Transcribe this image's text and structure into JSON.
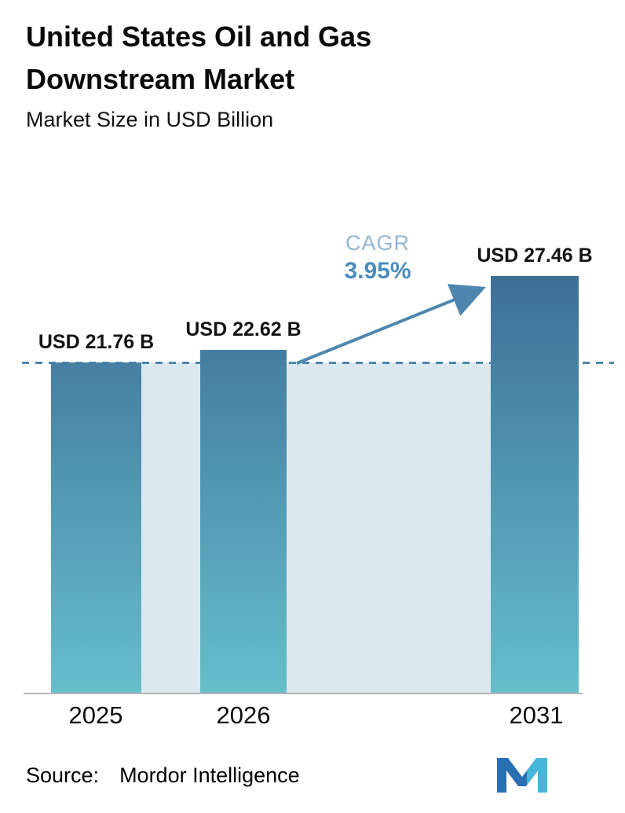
{
  "header": {
    "title": "United States Oil and Gas Downstream Market",
    "subtitle": "Market Size in USD Billion"
  },
  "chart_data": {
    "type": "bar",
    "categories": [
      "2025",
      "2026",
      "2031"
    ],
    "values": [
      21.76,
      22.62,
      27.46
    ],
    "value_labels": [
      "USD 21.76 B",
      "USD 22.62 B",
      "USD 27.46 B"
    ],
    "title": "United States Oil and Gas Downstream Market",
    "subtitle": "Market Size in USD Billion",
    "xlabel": "",
    "ylabel": "Market Size in USD Billion",
    "ylim": [
      0,
      28
    ],
    "grid": false,
    "legend": "none",
    "cagr_label": "CAGR",
    "cagr_value": "3.95%",
    "dashed_line_value": 21.76,
    "colors": {
      "bar_gradient_top": "#3d6d96",
      "bar_gradient_bottom": "#66becb",
      "band": "#dce8f0",
      "accent": "#4e86ad",
      "cagr_label": "#92b6d1",
      "cagr_value": "#4a8cba",
      "axis": "#b5b5b5"
    }
  },
  "footer": {
    "source_label": "Source:",
    "source_value": "Mordor Intelligence",
    "logo": "mordor-intelligence-logo",
    "logo_colors": {
      "primary": "#2b6fb3",
      "secondary": "#45b7d8"
    }
  }
}
